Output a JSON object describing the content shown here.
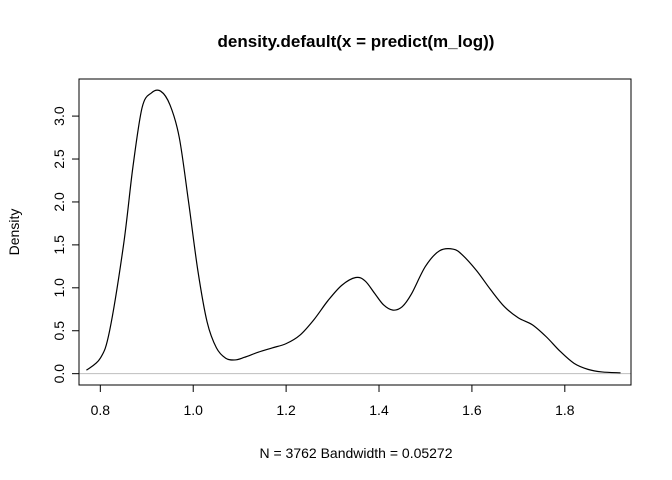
{
  "chart_data": {
    "type": "line",
    "title": "density.default(x = predict(m_log))",
    "xlabel": "N = 3762   Bandwidth = 0.05272",
    "ylabel": "Density",
    "xlim": [
      0.7541,
      1.9425
    ],
    "ylim": [
      -0.132,
      3.432
    ],
    "x_ticks": [
      0.8,
      1.0,
      1.2,
      1.4,
      1.6,
      1.8
    ],
    "x_tick_labels": [
      "0.8",
      "1.0",
      "1.2",
      "1.4",
      "1.6",
      "1.8"
    ],
    "y_ticks": [
      0.0,
      0.5,
      1.0,
      1.5,
      2.0,
      2.5,
      3.0
    ],
    "y_tick_labels": [
      "0.0",
      "0.5",
      "1.0",
      "1.5",
      "2.0",
      "2.5",
      "3.0"
    ],
    "grid": false,
    "legend": "none",
    "baseline": 0,
    "colors": {
      "line": "#000000",
      "baseline": "#bebebe",
      "axis": "#000000",
      "background": "#ffffff"
    },
    "series": [
      {
        "x": [
          0.77,
          0.8,
          0.82,
          0.85,
          0.87,
          0.89,
          0.91,
          0.93,
          0.95,
          0.97,
          0.99,
          1.01,
          1.03,
          1.05,
          1.07,
          1.09,
          1.11,
          1.14,
          1.17,
          1.2,
          1.23,
          1.26,
          1.29,
          1.32,
          1.35,
          1.37,
          1.39,
          1.41,
          1.43,
          1.45,
          1.47,
          1.5,
          1.53,
          1.56,
          1.58,
          1.61,
          1.64,
          1.67,
          1.7,
          1.73,
          1.76,
          1.79,
          1.82,
          1.85,
          1.88,
          1.92
        ],
        "y": [
          0.04,
          0.18,
          0.5,
          1.5,
          2.4,
          3.1,
          3.27,
          3.29,
          3.13,
          2.75,
          2.0,
          1.2,
          0.6,
          0.3,
          0.18,
          0.16,
          0.19,
          0.25,
          0.3,
          0.35,
          0.45,
          0.63,
          0.85,
          1.03,
          1.12,
          1.08,
          0.94,
          0.8,
          0.74,
          0.78,
          0.93,
          1.25,
          1.43,
          1.45,
          1.38,
          1.2,
          0.98,
          0.78,
          0.65,
          0.57,
          0.43,
          0.26,
          0.12,
          0.05,
          0.02,
          0.01
        ]
      }
    ]
  }
}
